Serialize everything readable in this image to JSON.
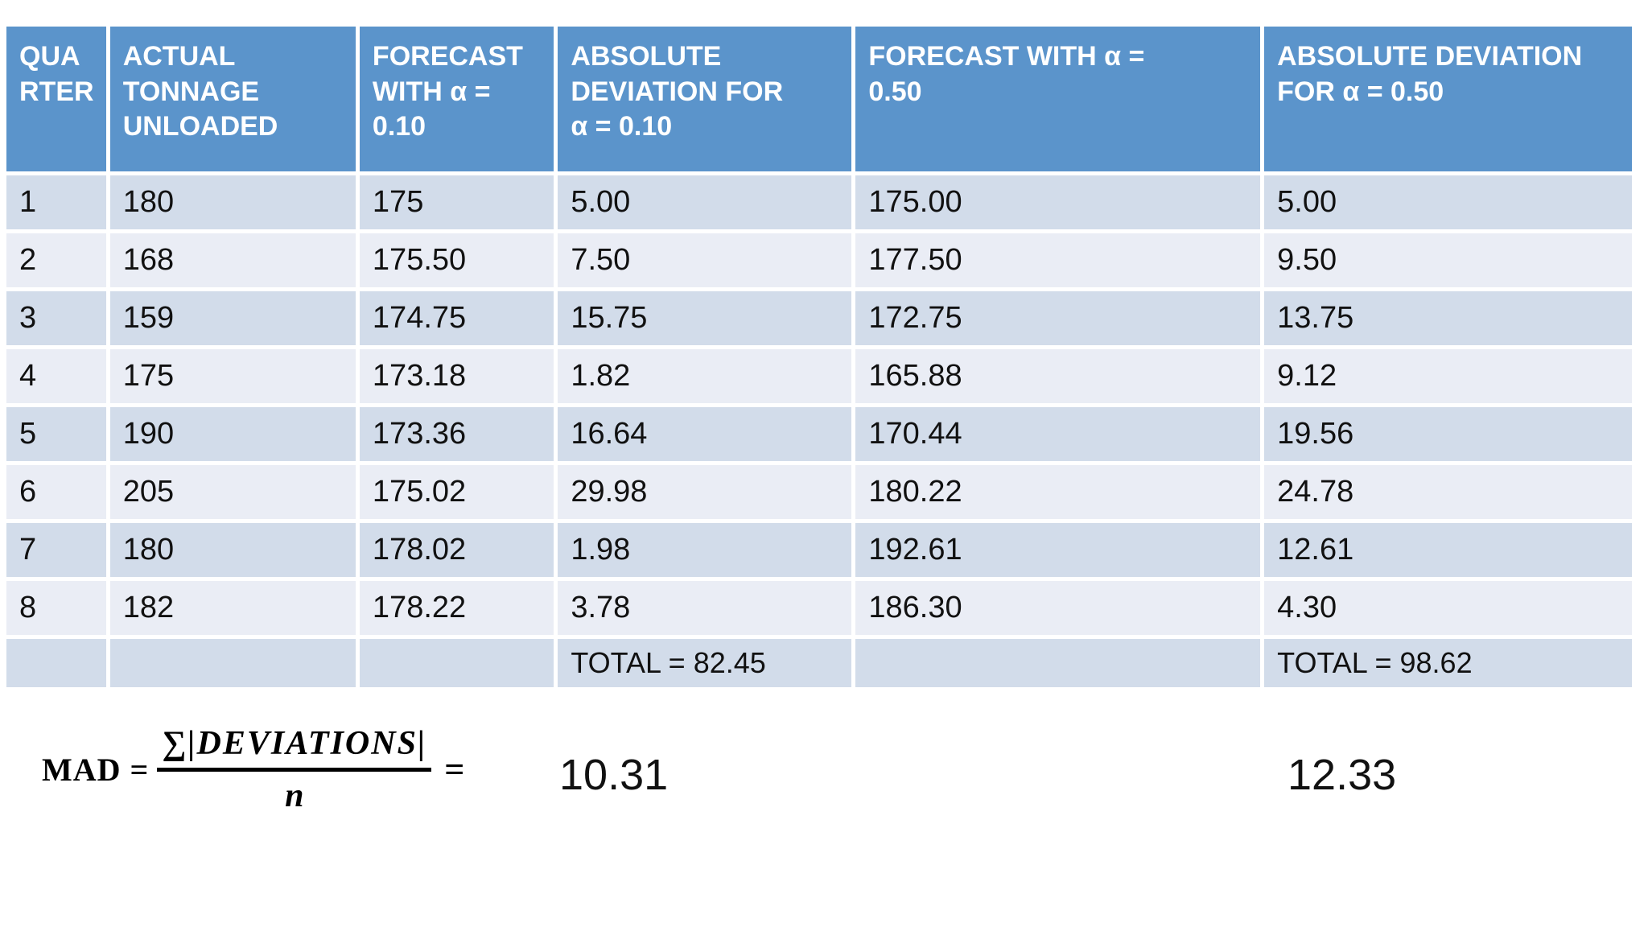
{
  "table": {
    "columns": [
      {
        "label": "QUA\nRTER"
      },
      {
        "label": "ACTUAL\nTONNAGE\nUNLOADED"
      },
      {
        "label": "FORECAST\nWITH  α =\n0.10"
      },
      {
        "label": "ABSOLUTE\nDEVIATION FOR\nα = 0.10"
      },
      {
        "label": "FORECAST WITH α =\n0.50"
      },
      {
        "label": "ABSOLUTE DEVIATION\nFOR α = 0.50"
      }
    ],
    "rows": [
      [
        "1",
        "180",
        "175",
        "5.00",
        "175.00",
        "5.00"
      ],
      [
        "2",
        "168",
        "175.50",
        "7.50",
        "177.50",
        "9.50"
      ],
      [
        "3",
        "159",
        "174.75",
        "15.75",
        "172.75",
        "13.75"
      ],
      [
        "4",
        "175",
        "173.18",
        "1.82",
        "165.88",
        "9.12"
      ],
      [
        "5",
        "190",
        "173.36",
        "16.64",
        "170.44",
        "19.56"
      ],
      [
        "6",
        "205",
        "175.02",
        "29.98",
        "180.22",
        "24.78"
      ],
      [
        "7",
        "180",
        "178.02",
        "1.98",
        "192.61",
        "12.61"
      ],
      [
        "8",
        "182",
        "178.22",
        "3.78",
        "186.30",
        "4.30"
      ]
    ],
    "total_row": [
      "",
      "",
      "",
      "TOTAL = 82.45",
      "",
      "TOTAL = 98.62"
    ]
  },
  "formula": {
    "lhs": "MAD =",
    "numerator": "∑|DEVIATIONS|",
    "denominator": "n",
    "equals": "=",
    "result_alpha_010": "10.31",
    "result_alpha_050": "12.33"
  },
  "colors": {
    "header_bg": "#5B94CB",
    "row_dark": "#D2DCEA",
    "row_light": "#EAEDF5",
    "header_text": "#FFFFFF",
    "body_text": "#111111"
  }
}
